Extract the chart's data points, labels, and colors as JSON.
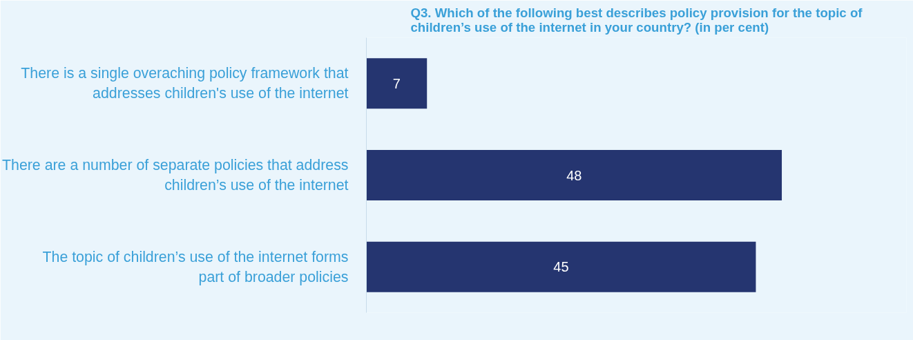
{
  "chart_data": {
    "type": "bar",
    "orientation": "horizontal",
    "title": "Q3. Which of the following best describes policy provision for the topic of children’s use of the internet in your country? (in per cent)",
    "categories": [
      "There is a single overaching policy framework that addresses children's use of the internet",
      "There are a number of separate policies that address children’s use of the internet",
      "The topic of children’s use of the internet forms part of broader policies"
    ],
    "values": [
      7,
      48,
      45
    ],
    "color": "#253570",
    "data_labels": true
  }
}
